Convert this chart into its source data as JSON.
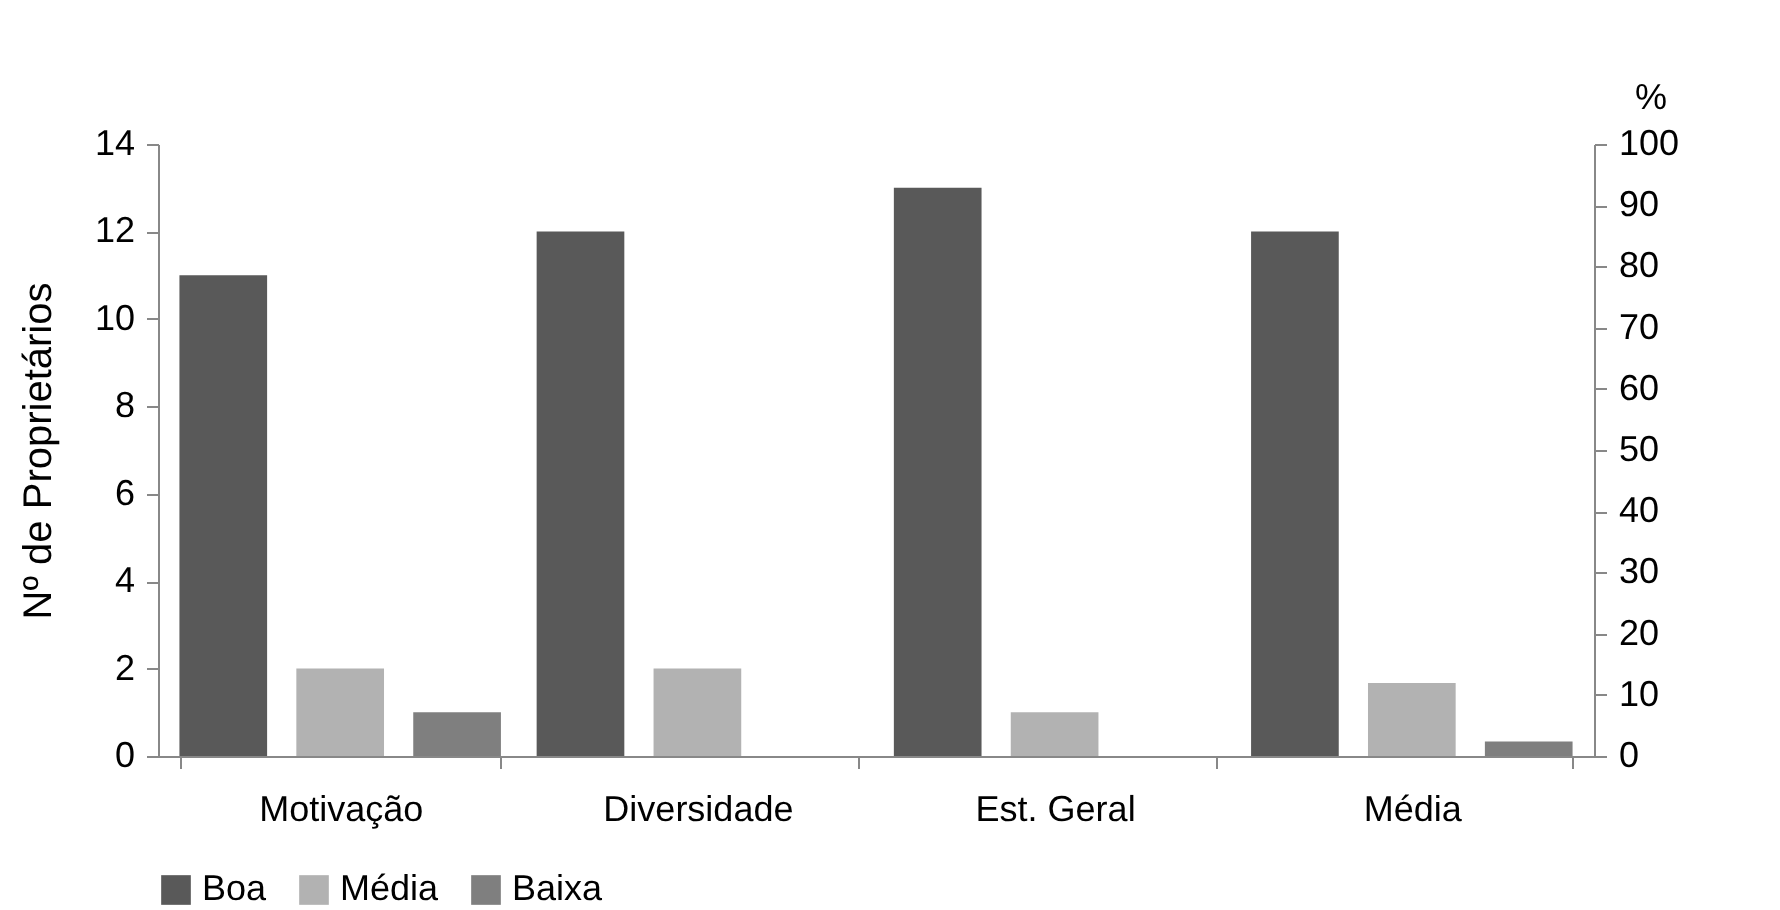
{
  "chart_data": {
    "type": "bar",
    "ylabel": "Nº de Proprietários",
    "y2label": "%",
    "categories": [
      "Motivação",
      "Diversidade",
      "Est. Geral",
      "Média"
    ],
    "series": [
      {
        "name": "Boa",
        "color": "#595959",
        "values": [
          11,
          12,
          13,
          12
        ]
      },
      {
        "name": "Média",
        "color": "#b2b2b2",
        "values": [
          2,
          2,
          1,
          1.67
        ]
      },
      {
        "name": "Baixa",
        "color": "#7f7f7f",
        "values": [
          1,
          0,
          0,
          0.33
        ]
      }
    ],
    "ylim": [
      0,
      14
    ],
    "yticks": [
      0,
      2,
      4,
      6,
      8,
      10,
      12,
      14
    ],
    "y2lim": [
      0,
      100
    ],
    "y2ticks": [
      0,
      10,
      20,
      30,
      40,
      50,
      60,
      70,
      80,
      90,
      100
    ],
    "grid": false,
    "legend": "bottom"
  }
}
